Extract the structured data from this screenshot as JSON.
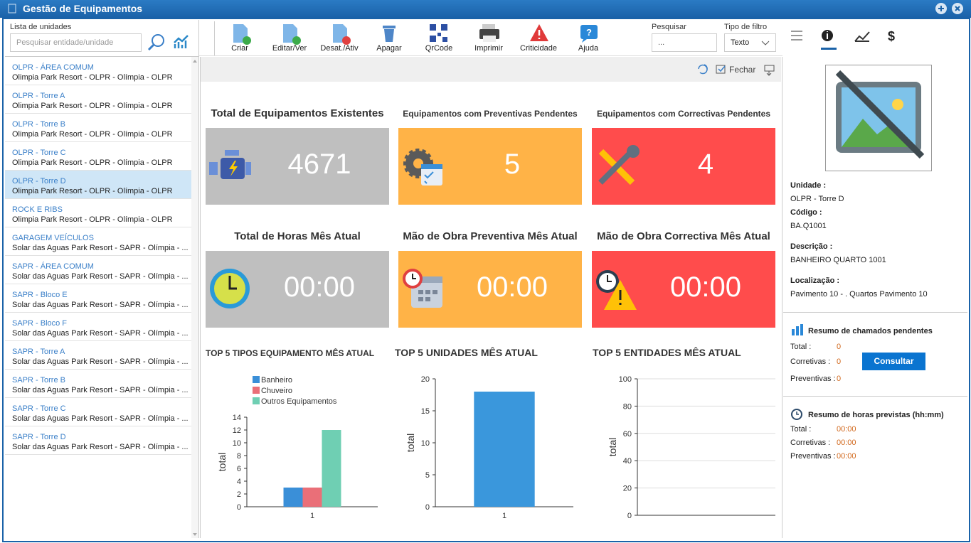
{
  "window": {
    "title": "Gestão de Equipamentos"
  },
  "sidebar": {
    "label": "Lista de unidades",
    "search_placeholder": "Pesquisar entidade/unidade",
    "selected_unit": 4,
    "units": [
      {
        "name": "OLPR - ÁREA COMUM",
        "detail": "Olimpia Park Resort - OLPR - Olímpia - OLPR"
      },
      {
        "name": "OLPR - Torre A",
        "detail": "Olimpia Park Resort - OLPR - Olímpia - OLPR"
      },
      {
        "name": "OLPR - Torre B",
        "detail": "Olimpia Park Resort - OLPR - Olímpia - OLPR"
      },
      {
        "name": "OLPR - Torre C",
        "detail": "Olimpia Park Resort - OLPR - Olímpia - OLPR"
      },
      {
        "name": "OLPR - Torre D",
        "detail": "Olimpia Park Resort - OLPR - Olímpia - OLPR"
      },
      {
        "name": "ROCK E RIBS",
        "detail": "Olimpia Park Resort - OLPR - Olímpia - OLPR"
      },
      {
        "name": "GARAGEM VEÍCULOS",
        "detail": "Solar das Aguas Park Resort - SAPR - Olímpia - ..."
      },
      {
        "name": "SAPR - ÁREA COMUM",
        "detail": "Solar das Aguas Park Resort - SAPR - Olímpia - ..."
      },
      {
        "name": "SAPR - Bloco E",
        "detail": "Solar das Aguas Park Resort - SAPR - Olímpia - ..."
      },
      {
        "name": "SAPR - Bloco F",
        "detail": "Solar das Aguas Park Resort - SAPR - Olímpia - ..."
      },
      {
        "name": "SAPR - Torre A",
        "detail": "Solar das Aguas Park Resort - SAPR - Olímpia - ..."
      },
      {
        "name": "SAPR - Torre B",
        "detail": "Solar das Aguas Park Resort - SAPR - Olímpia - ..."
      },
      {
        "name": "SAPR - Torre C",
        "detail": "Solar das Aguas Park Resort - SAPR - Olímpia - ..."
      },
      {
        "name": "SAPR - Torre D",
        "detail": "Solar das Aguas Park Resort - SAPR - Olímpia - ..."
      }
    ]
  },
  "toolbar": {
    "buttons": [
      "Criar",
      "Editar/Ver",
      "Desat./Ativ",
      "Apagar",
      "QrCode",
      "Imprimir",
      "Criticidade",
      "Ajuda"
    ],
    "search_label": "Pesquisar",
    "search_placeholder": "...",
    "filter_label": "Tipo de filtro",
    "filter_value": "Texto"
  },
  "content": {
    "close": "Fechar",
    "cards": [
      {
        "title": "Total de Equipamentos Existentes",
        "value": 4671,
        "color": "#bfbfbf"
      },
      {
        "title": "Equipamentos com Preventivas Pendentes",
        "value": 5,
        "color": "#ffb347"
      },
      {
        "title": "Equipamentos com Correctivas Pendentes",
        "value": 4,
        "color": "#ff4c4c"
      },
      {
        "title": "Total de Horas Mês Atual",
        "value": "00:00",
        "color": "#bfbfbf"
      },
      {
        "title": "Mão de Obra Preventiva Mês Atual",
        "value": "00:00",
        "color": "#ffb347"
      },
      {
        "title": "Mão de Obra Correctiva Mês Atual",
        "value": "00:00",
        "color": "#ff4c4c"
      }
    ]
  },
  "chart_data": [
    {
      "type": "bar",
      "title": "TOP 5 TIPOS EQUIPAMENTO MÊS ATUAL",
      "y_label": "total",
      "categories": [
        "1"
      ],
      "series": [
        {
          "name": "Banheiro",
          "color": "#3a8fd8",
          "values": [
            3
          ]
        },
        {
          "name": "Chuveiro",
          "color": "#ea6f78",
          "values": [
            3
          ]
        },
        {
          "name": "Outros Equipamentos",
          "color": "#6fcfb3",
          "values": [
            12
          ]
        }
      ],
      "ylim": [
        0,
        14
      ],
      "yticks": [
        0,
        2,
        4,
        6,
        8,
        10,
        12,
        14
      ],
      "grid": false,
      "legend": "top-left"
    },
    {
      "type": "bar",
      "title": "TOP 5 UNIDADES MÊS ATUAL",
      "y_label": "total",
      "categories": [
        "1"
      ],
      "values": [
        18
      ],
      "color": "#3a97dc",
      "ylim": [
        0,
        20
      ],
      "yticks": [
        0,
        5,
        10,
        15,
        20
      ],
      "grid": false
    },
    {
      "type": "bar",
      "title": "TOP 5 ENTIDADES MÊS ATUAL",
      "y_label": "total",
      "categories": [],
      "values": [],
      "color": "#3a97dc",
      "ylim": [
        0,
        100
      ],
      "yticks": [
        0,
        20,
        40,
        60,
        80,
        100
      ],
      "grid": true
    }
  ],
  "details": {
    "fields": [
      {
        "label": "Unidade :",
        "value": "OLPR - Torre D"
      },
      {
        "label": "Código :",
        "value": "BA.Q1001"
      },
      {
        "label": "Descrição :",
        "value": "BANHEIRO QUARTO 1001"
      },
      {
        "label": "Localização :",
        "value": "Pavimento 10 - . Quartos Pavimento 10"
      }
    ],
    "pending": {
      "title": "Resumo de chamados pendentes",
      "rows": [
        {
          "label": "Total :",
          "value": 0
        },
        {
          "label": "Corretivas :",
          "value": 0
        },
        {
          "label": "Preventivas :",
          "value": 0
        }
      ],
      "button": "Consultar"
    },
    "hours": {
      "title": "Resumo de horas previstas (hh:mm)",
      "rows": [
        {
          "label": "Total :",
          "value": "00:00"
        },
        {
          "label": "Corretivas :",
          "value": "00:00"
        },
        {
          "label": "Preventivas :",
          "value": "00:00"
        }
      ]
    }
  }
}
